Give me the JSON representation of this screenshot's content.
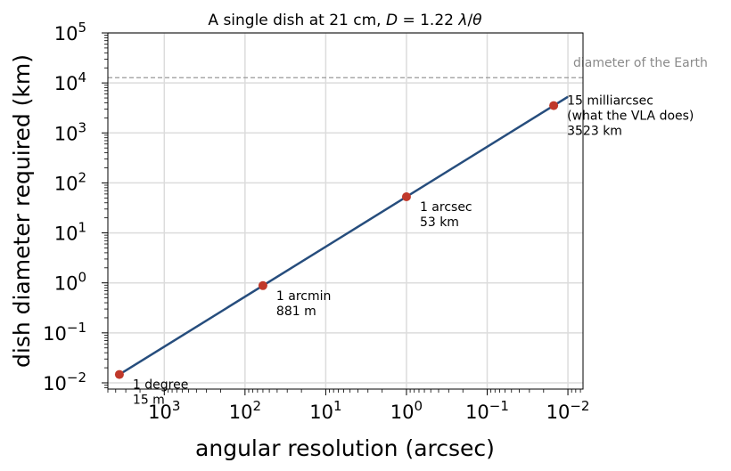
{
  "chart_data": {
    "type": "line",
    "title": "A single dish at 21 cm, D = 1.22 λ/θ",
    "title_parts": {
      "prefix": "A single dish at 21 cm, ",
      "var_D": "D",
      "eq": " = 1.22 ",
      "var_lambda": "λ",
      "slash": "/",
      "var_theta": "θ"
    },
    "xlabel": "angular resolution (arcsec)",
    "ylabel": "dish diameter required (km)",
    "x_scale": "log",
    "y_scale": "log",
    "x_reversed": true,
    "xlim": [
      5000,
      0.0065
    ],
    "ylim": [
      0.0075,
      100000
    ],
    "grid": true,
    "x_ticks": [
      {
        "value": 1000,
        "base": "10",
        "exp": "3"
      },
      {
        "value": 100,
        "base": "10",
        "exp": "2"
      },
      {
        "value": 10,
        "base": "10",
        "exp": "1"
      },
      {
        "value": 1,
        "base": "10",
        "exp": "0"
      },
      {
        "value": 0.1,
        "base": "10",
        "exp": "−1"
      },
      {
        "value": 0.01,
        "base": "10",
        "exp": "−2"
      }
    ],
    "y_ticks": [
      {
        "value": 0.01,
        "base": "10",
        "exp": "−2"
      },
      {
        "value": 0.1,
        "base": "10",
        "exp": "−1"
      },
      {
        "value": 1,
        "base": "10",
        "exp": "0"
      },
      {
        "value": 10,
        "base": "10",
        "exp": "1"
      },
      {
        "value": 100,
        "base": "10",
        "exp": "2"
      },
      {
        "value": 1000,
        "base": "10",
        "exp": "3"
      },
      {
        "value": 10000,
        "base": "10",
        "exp": "4"
      },
      {
        "value": 100000,
        "base": "10",
        "exp": "5"
      }
    ],
    "line": {
      "color": "#264d7d",
      "x": [
        3600,
        0.01
      ],
      "y": [
        0.0147,
        5284
      ]
    },
    "points": {
      "color": "#c0392b",
      "items": [
        {
          "x": 3600,
          "y": 0.0147,
          "label_lines": [
            "1 degree",
            "15 m"
          ]
        },
        {
          "x": 60,
          "y": 0.881,
          "label_lines": [
            "1 arcmin",
            "881 m"
          ]
        },
        {
          "x": 1,
          "y": 52.8,
          "label_lines": [
            "1 arcsec",
            "53 km"
          ]
        },
        {
          "x": 0.015,
          "y": 3523,
          "label_lines": [
            "15 milliarcsec",
            "(what the VLA does)",
            "3523 km"
          ]
        }
      ]
    },
    "reference_line": {
      "y": 12742,
      "label": "diameter of the Earth",
      "color": "#999999"
    }
  }
}
